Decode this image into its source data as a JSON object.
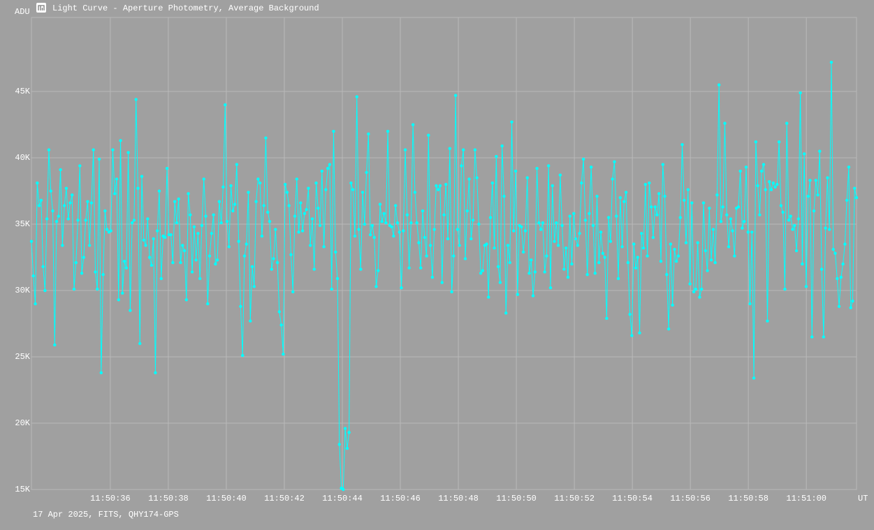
{
  "chart_data": {
    "type": "line",
    "title": "Light Curve - Aperture Photometry, Average Background",
    "y_label": "ADU",
    "x_label": "UT",
    "caption": "17 Apr 2025, FITS, QHY174-GPS",
    "color": "#00ffff",
    "grid": true,
    "xlim": [
      42633.28,
      42661.73
    ],
    "xticks": [
      {
        "value": 42636,
        "label": "11:50:36"
      },
      {
        "value": 42638,
        "label": "11:50:38"
      },
      {
        "value": 42640,
        "label": "11:50:40"
      },
      {
        "value": 42642,
        "label": "11:50:42"
      },
      {
        "value": 42644,
        "label": "11:50:44"
      },
      {
        "value": 42646,
        "label": "11:50:46"
      },
      {
        "value": 42648,
        "label": "11:50:48"
      },
      {
        "value": 42650,
        "label": "11:50:50"
      },
      {
        "value": 42652,
        "label": "11:50:52"
      },
      {
        "value": 42654,
        "label": "11:50:54"
      },
      {
        "value": 42656,
        "label": "11:50:56"
      },
      {
        "value": 42658,
        "label": "11:50:58"
      },
      {
        "value": 42660,
        "label": "11:51:00"
      }
    ],
    "ylim": [
      15000,
      50580
    ],
    "yticks": [
      {
        "value": 15000,
        "label": "15K"
      },
      {
        "value": 20000,
        "label": "20K"
      },
      {
        "value": 25000,
        "label": "25K"
      },
      {
        "value": 30000,
        "label": "30K"
      },
      {
        "value": 35000,
        "label": "35K"
      },
      {
        "value": 40000,
        "label": "40K"
      },
      {
        "value": 45000,
        "label": "45K"
      }
    ],
    "values": [
      33700,
      31100,
      29000,
      38100,
      36400,
      36800,
      31800,
      30000,
      35400,
      40600,
      37500,
      36000,
      25900,
      35200,
      35600,
      39100,
      33400,
      36400,
      37700,
      35400,
      36600,
      37200,
      30100,
      32100,
      35300,
      39400,
      31300,
      32500,
      35300,
      36700,
      33400,
      36600,
      40600,
      31400,
      30100,
      39900,
      23800,
      31200,
      36000,
      34600,
      34400,
      34500,
      40600,
      37300,
      38400,
      29300,
      41300,
      29800,
      32200,
      31700,
      40400,
      28500,
      35100,
      35300,
      44400,
      37700,
      26000,
      38600,
      33800,
      33400,
      35400,
      32500,
      31900,
      33900,
      23800,
      34500,
      37500,
      30900,
      34100,
      34000,
      39200,
      34200,
      34200,
      32100,
      36700,
      35100,
      36900,
      32100,
      33400,
      33000,
      29300,
      37300,
      35700,
      31400,
      34800,
      32300,
      34300,
      30900,
      34900,
      38400,
      35600,
      29000,
      32600,
      34300,
      35700,
      32000,
      32300,
      36700,
      35100,
      37800,
      44000,
      35200,
      33300,
      37900,
      36000,
      36500,
      39500,
      33700,
      28800,
      25100,
      32600,
      33500,
      37400,
      27700,
      31800,
      30300,
      36700,
      38400,
      38100,
      34100,
      36400,
      41500,
      35900,
      35200,
      31600,
      32400,
      34600,
      32100,
      28400,
      27400,
      25200,
      38000,
      37400,
      36400,
      32700,
      29900,
      35600,
      38400,
      34400,
      36600,
      34500,
      35800,
      36100,
      37700,
      33400,
      35400,
      31600,
      38100,
      36200,
      34900,
      39000,
      33300,
      37600,
      39200,
      39500,
      30100,
      42000,
      32900,
      30900,
      18400,
      15100,
      15000,
      19600,
      18100,
      19300,
      38100,
      37600,
      34100,
      44600,
      34600,
      31600,
      37400,
      35000,
      38900,
      41800,
      34200,
      34900,
      34000,
      30300,
      31500,
      36500,
      35200,
      35800,
      35100,
      42000,
      34900,
      34800,
      34100,
      36400,
      35100,
      34400,
      30200,
      34500,
      40600,
      35700,
      31700,
      35100,
      42500,
      37400,
      35100,
      33600,
      31700,
      36000,
      34000,
      32600,
      41700,
      33400,
      31000,
      34600,
      37900,
      37600,
      37900,
      30600,
      35700,
      38000,
      33900,
      40700,
      29900,
      32600,
      44700,
      34600,
      33400,
      39400,
      40600,
      32400,
      36000,
      38400,
      33900,
      35300,
      40600,
      38500,
      35000,
      31300,
      31500,
      33400,
      33500,
      29500,
      35500,
      38100,
      33200,
      40100,
      31800,
      30600,
      40900,
      37100,
      28300,
      33400,
      32100,
      42700,
      34500,
      39000,
      29700,
      34900,
      34800,
      32900,
      34500,
      38500,
      31300,
      32300,
      29600,
      31400,
      39200,
      35100,
      34600,
      35100,
      31400,
      32600,
      39400,
      30200,
      37900,
      33700,
      35100,
      33400,
      38700,
      34900,
      31600,
      33200,
      31000,
      35600,
      32000,
      35800,
      33900,
      33400,
      34300,
      38100,
      39900,
      35300,
      31200,
      35800,
      39300,
      34900,
      31300,
      37100,
      32100,
      34400,
      32800,
      32500,
      27900,
      35500,
      33700,
      38400,
      39700,
      35600,
      30900,
      37000,
      33300,
      36700,
      37400,
      32100,
      28200,
      26600,
      33500,
      31700,
      32500,
      26800,
      34300,
      33200,
      38000,
      32600,
      38100,
      36300,
      34000,
      36300,
      35700,
      37300,
      32200,
      39500,
      37100,
      31200,
      27100,
      33500,
      28900,
      33100,
      32200,
      32600,
      35500,
      41000,
      36800,
      33600,
      37600,
      30500,
      36600,
      29900,
      30100,
      33600,
      29500,
      30100,
      36600,
      33000,
      31500,
      36200,
      32300,
      34600,
      32100,
      37200,
      45500,
      35200,
      36300,
      42600,
      35700,
      33300,
      35400,
      34500,
      32600,
      36200,
      36300,
      39000,
      34700,
      35200,
      39300,
      34400,
      29000,
      34400,
      23400,
      41200,
      37900,
      35700,
      39000,
      39500,
      37600,
      27700,
      38200,
      37600,
      38100,
      37800,
      38000,
      41200,
      36400,
      35900,
      30100,
      42600,
      35300,
      35600,
      34600,
      34900,
      33000,
      35400,
      44900,
      32000,
      40300,
      30300,
      37100,
      38300,
      26500,
      36000,
      38300,
      37200,
      40500,
      31600,
      26500,
      34700,
      38500,
      34600,
      47200,
      33100,
      32800,
      30900,
      28800,
      31000,
      32000,
      33500,
      36800,
      39300,
      28700,
      29200,
      37700,
      37000
    ]
  }
}
